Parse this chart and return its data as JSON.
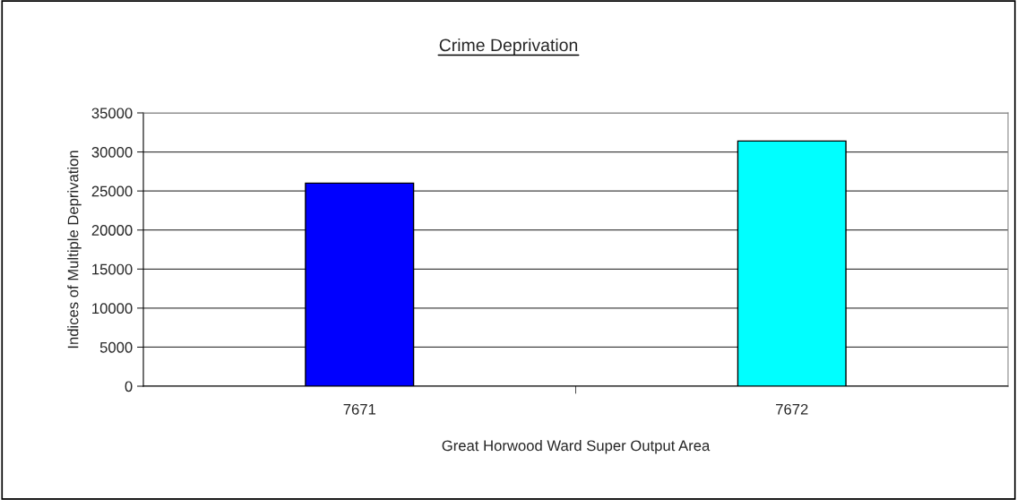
{
  "chart_data": {
    "type": "bar",
    "title": "Crime Deprivation",
    "xlabel": "Great Horwood Ward Super Output Area",
    "ylabel": "Indices of Multiple Deprivation",
    "categories": [
      "7671",
      "7672"
    ],
    "values": [
      26000,
      31400
    ],
    "colors": [
      "#0000ff",
      "#00ffff"
    ],
    "ylim": [
      0,
      35000
    ],
    "yticks": [
      0,
      5000,
      10000,
      15000,
      20000,
      25000,
      30000,
      35000
    ],
    "grid": "y",
    "legend": false
  }
}
